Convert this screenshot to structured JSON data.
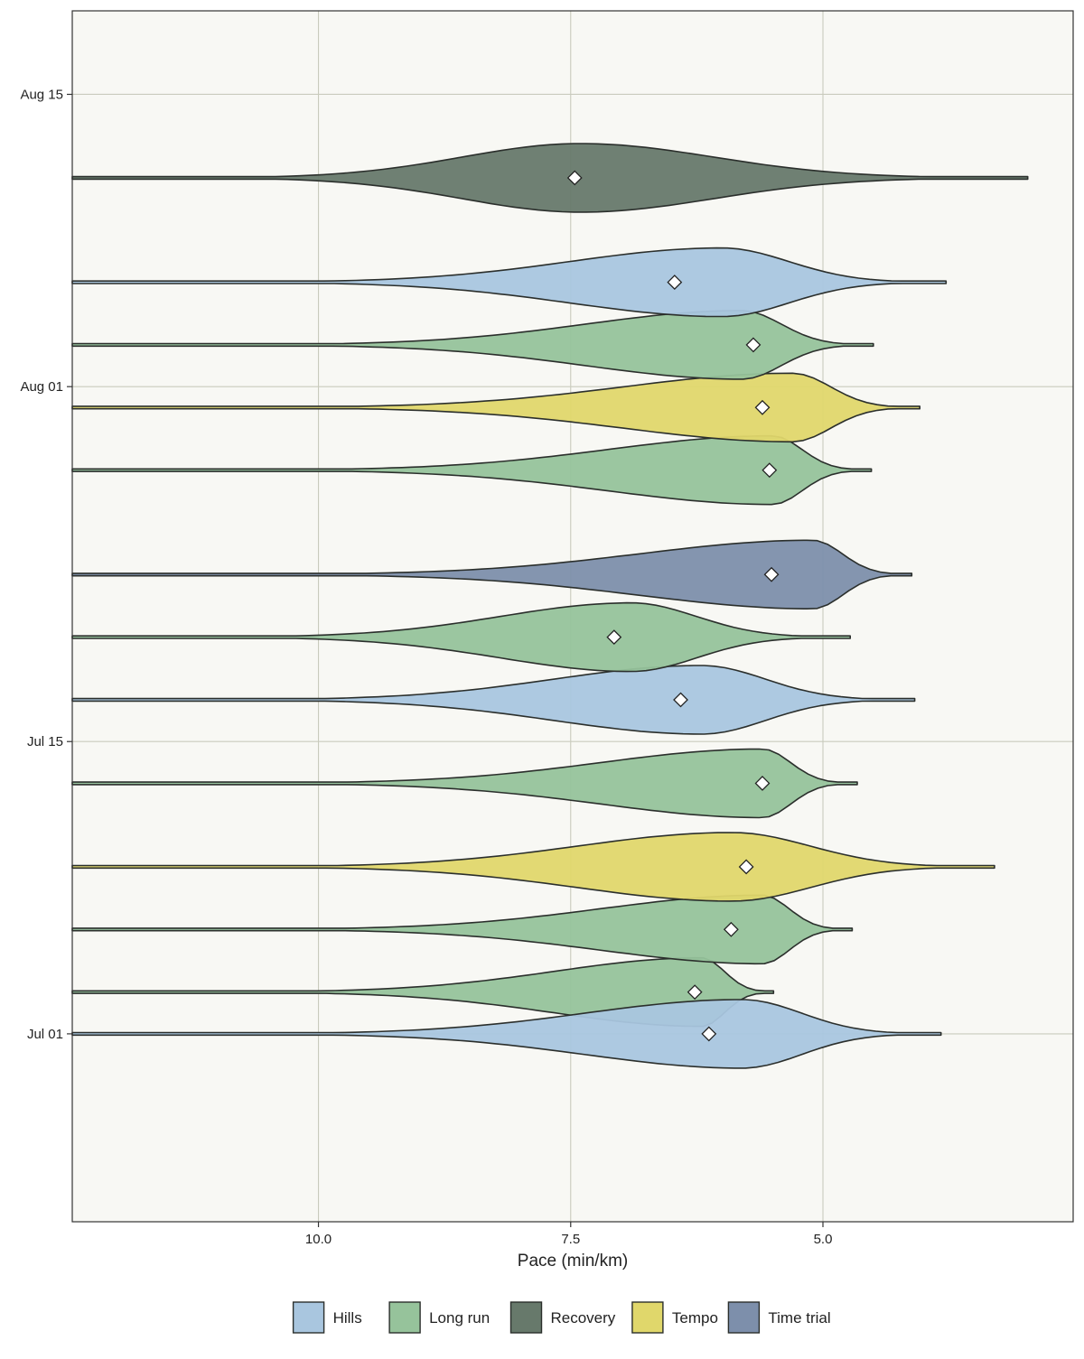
{
  "chart_data": {
    "type": "violin",
    "title": "",
    "xlabel": "Pace (min/km)",
    "ylabel": "",
    "x_reversed": true,
    "xlim": [
      12.44,
      2.52
    ],
    "x_ticks": [
      10.0,
      7.5,
      5.0
    ],
    "x_tick_labels": [
      "10.0",
      "7.5",
      "5.0"
    ],
    "y_date_range": [
      "2025-06-22",
      "2025-08-19"
    ],
    "y_ticks": [
      "2025-07-01",
      "2025-07-15",
      "2025-08-01",
      "2025-08-15"
    ],
    "y_tick_labels": [
      "Jul 01",
      "Jul 15",
      "Aug 01",
      "Aug 15"
    ],
    "grid": true,
    "legend_position": "bottom",
    "legend": [
      {
        "label": "Hills",
        "color": "#a9c6df"
      },
      {
        "label": "Long run",
        "color": "#96c39b"
      },
      {
        "label": "Recovery",
        "color": "#67796b"
      },
      {
        "label": "Tempo",
        "color": "#e0d76b"
      },
      {
        "label": "Time trial",
        "color": "#7d8fab"
      }
    ],
    "runs": [
      {
        "date": "2025-07-03",
        "type": "Long run",
        "mean_pace": 6.27,
        "min_pace": 12.44,
        "max_pace": 5.49,
        "peak_pace": 6.2
      },
      {
        "date": "2025-07-01",
        "type": "Hills",
        "mean_pace": 6.13,
        "min_pace": 12.44,
        "max_pace": 3.83,
        "peak_pace": 5.8
      },
      {
        "date": "2025-07-06",
        "type": "Long run",
        "mean_pace": 5.91,
        "min_pace": 12.44,
        "max_pace": 4.71,
        "peak_pace": 5.6
      },
      {
        "date": "2025-07-09",
        "type": "Tempo",
        "mean_pace": 5.76,
        "min_pace": 12.44,
        "max_pace": 3.3,
        "peak_pace": 5.9
      },
      {
        "date": "2025-07-13",
        "type": "Long run",
        "mean_pace": 5.6,
        "min_pace": 12.44,
        "max_pace": 4.66,
        "peak_pace": 5.6
      },
      {
        "date": "2025-07-17",
        "type": "Hills",
        "mean_pace": 6.41,
        "min_pace": 12.44,
        "max_pace": 4.09,
        "peak_pace": 6.2
      },
      {
        "date": "2025-07-20",
        "type": "Long run",
        "mean_pace": 7.07,
        "min_pace": 12.44,
        "max_pace": 4.73,
        "peak_pace": 6.9
      },
      {
        "date": "2025-07-23",
        "type": "Time trial",
        "mean_pace": 5.51,
        "min_pace": 12.44,
        "max_pace": 4.12,
        "peak_pace": 5.1
      },
      {
        "date": "2025-07-28",
        "type": "Long run",
        "mean_pace": 5.53,
        "min_pace": 12.44,
        "max_pace": 4.52,
        "peak_pace": 5.5
      },
      {
        "date": "2025-07-31",
        "type": "Tempo",
        "mean_pace": 5.6,
        "min_pace": 12.44,
        "max_pace": 4.04,
        "peak_pace": 5.3
      },
      {
        "date": "2025-08-03",
        "type": "Long run",
        "mean_pace": 5.69,
        "min_pace": 12.44,
        "max_pace": 4.5,
        "peak_pace": 5.8
      },
      {
        "date": "2025-08-06",
        "type": "Hills",
        "mean_pace": 6.47,
        "min_pace": 12.44,
        "max_pace": 3.78,
        "peak_pace": 6.0
      },
      {
        "date": "2025-08-11",
        "type": "Recovery",
        "mean_pace": 7.46,
        "min_pace": 12.44,
        "max_pace": 2.97,
        "peak_pace": 7.4
      }
    ]
  }
}
